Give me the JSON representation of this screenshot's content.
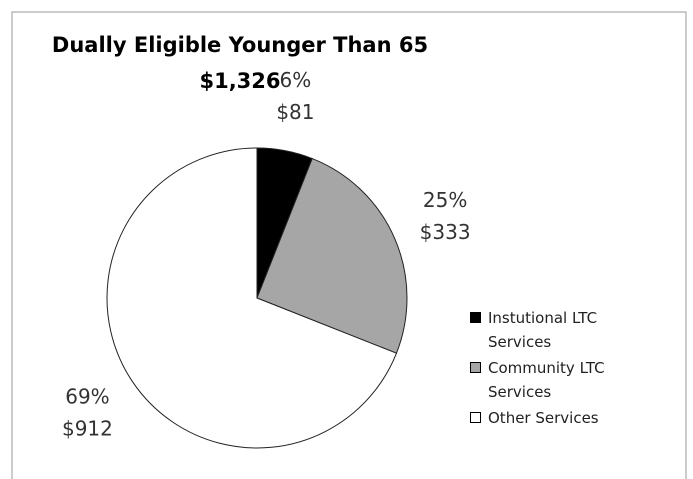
{
  "chart_data": {
    "type": "pie",
    "title": "Dually Eligible Younger Than 65",
    "subtitle": "$1,326",
    "categories": [
      "Instutional LTC Services",
      "Community LTC Services",
      "Other Services"
    ],
    "values": [
      6,
      25,
      69
    ],
    "value_labels": [
      "6%",
      "25%",
      "69%"
    ],
    "amount_labels": [
      "$81",
      "$333",
      "$912"
    ],
    "colors": [
      "#000000",
      "#a6a6a6",
      "#ffffff"
    ],
    "legend": "right"
  }
}
